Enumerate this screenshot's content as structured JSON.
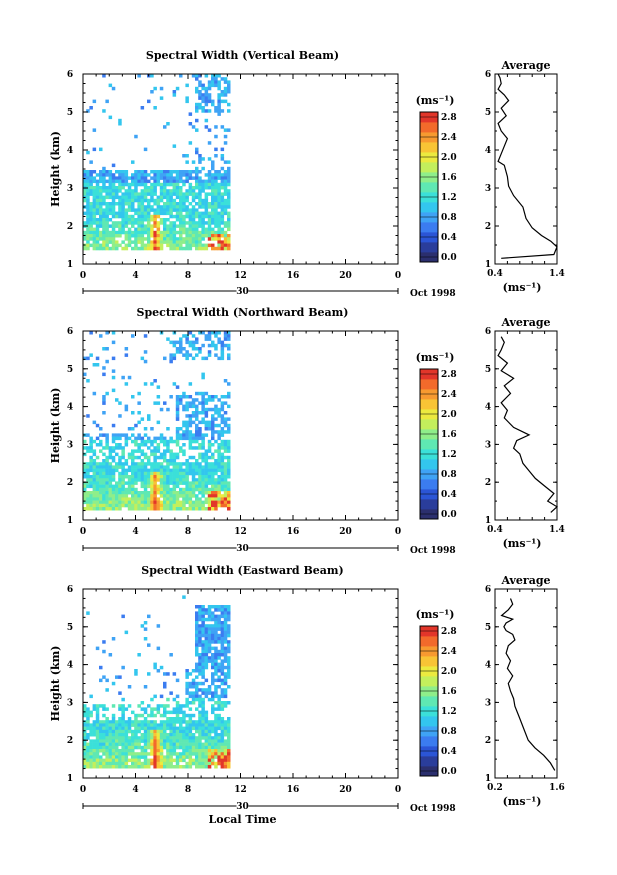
{
  "chart_data": [
    {
      "type": "heatmap",
      "title": "Spectral Width (Vertical Beam)",
      "ylabel": "Height (km)",
      "xlim": [
        0,
        24
      ],
      "ylim": [
        1,
        6
      ],
      "xticks": [
        "0",
        "4",
        "8",
        "12",
        "16",
        "20",
        "0"
      ],
      "yticks": [
        "1",
        "2",
        "3",
        "4",
        "5",
        "6"
      ],
      "date_day": "30",
      "date_month": "Oct 1998",
      "colorbar_unit": "(ms⁻¹)",
      "colorbar_ticks": [
        "2.8",
        "2.4",
        "2.0",
        "1.6",
        "1.2",
        "0.8",
        "0.4",
        "0.0"
      ],
      "data_extent": {
        "x_end": 11.0
      },
      "profile": {
        "title": "Average",
        "xlabel": "(ms⁻¹)",
        "xticks": [
          "0.4",
          "1.4"
        ],
        "xlim": [
          0.4,
          1.4
        ],
        "yticks": [
          "1",
          "2",
          "3",
          "4",
          "5",
          "6"
        ],
        "x": [
          0.5,
          1.35,
          1.4,
          1.3,
          1.15,
          1.0,
          0.9,
          0.85,
          0.7,
          0.62,
          0.6,
          0.55,
          0.45,
          0.5,
          0.55,
          0.6,
          0.5,
          0.45,
          0.58,
          0.5,
          0.62,
          0.55,
          0.45,
          0.5,
          0.48,
          0.45
        ],
        "y": [
          1.15,
          1.25,
          1.45,
          1.6,
          1.75,
          1.95,
          2.2,
          2.5,
          2.8,
          3.05,
          3.3,
          3.6,
          3.7,
          3.9,
          4.1,
          4.3,
          4.5,
          4.7,
          4.9,
          5.1,
          5.3,
          5.45,
          5.6,
          5.75,
          5.9,
          6.0
        ]
      }
    },
    {
      "type": "heatmap",
      "title": "Spectral Width (Northward Beam)",
      "ylabel": "Height (km)",
      "xlim": [
        0,
        24
      ],
      "ylim": [
        1,
        6
      ],
      "xticks": [
        "0",
        "4",
        "8",
        "12",
        "16",
        "20",
        "0"
      ],
      "yticks": [
        "1",
        "2",
        "3",
        "4",
        "5",
        "6"
      ],
      "date_day": "30",
      "date_month": "Oct 1998",
      "colorbar_unit": "(ms⁻¹)",
      "colorbar_ticks": [
        "2.8",
        "2.4",
        "2.0",
        "1.6",
        "1.2",
        "0.8",
        "0.4",
        "0.0"
      ],
      "data_extent": {
        "x_end": 11.0
      },
      "profile": {
        "title": "Average",
        "xlabel": "(ms⁻¹)",
        "xticks": [
          "0.4",
          "1.4"
        ],
        "xlim": [
          0.4,
          1.4
        ],
        "yticks": [
          "1",
          "2",
          "3",
          "4",
          "5",
          "6"
        ],
        "x": [
          1.3,
          1.4,
          1.25,
          1.35,
          1.2,
          1.05,
          0.95,
          0.85,
          0.8,
          0.7,
          0.75,
          0.95,
          0.7,
          0.55,
          0.6,
          0.5,
          0.65,
          0.55,
          0.7,
          0.5,
          0.6,
          0.45,
          0.5,
          0.55,
          0.5
        ],
        "y": [
          1.2,
          1.35,
          1.5,
          1.7,
          1.9,
          2.1,
          2.3,
          2.5,
          2.75,
          2.9,
          3.1,
          3.25,
          3.45,
          3.7,
          3.9,
          4.1,
          4.35,
          4.55,
          4.75,
          4.95,
          5.15,
          5.35,
          5.5,
          5.7,
          5.85
        ]
      }
    },
    {
      "type": "heatmap",
      "title": "Spectral Width (Eastward Beam)",
      "ylabel": "Height (km)",
      "xlabel": "Local Time",
      "xlim": [
        0,
        24
      ],
      "ylim": [
        1,
        6
      ],
      "xticks": [
        "0",
        "4",
        "8",
        "12",
        "16",
        "20",
        "0"
      ],
      "yticks": [
        "1",
        "2",
        "3",
        "4",
        "5",
        "6"
      ],
      "date_day": "30",
      "date_month": "Oct 1998",
      "colorbar_unit": "(ms⁻¹)",
      "colorbar_ticks": [
        "2.8",
        "2.4",
        "2.0",
        "1.6",
        "1.2",
        "0.8",
        "0.4",
        "0.0"
      ],
      "data_extent": {
        "x_end": 11.0
      },
      "profile": {
        "title": "Average",
        "xlabel": "(ms⁻¹)",
        "xticks": [
          "0.2",
          "1.6"
        ],
        "xlim": [
          0.2,
          1.6
        ],
        "yticks": [
          "1",
          "2",
          "3",
          "4",
          "5",
          "6"
        ],
        "x": [
          1.55,
          1.45,
          1.3,
          1.1,
          0.95,
          0.85,
          0.75,
          0.65,
          0.62,
          0.55,
          0.5,
          0.6,
          0.48,
          0.55,
          0.45,
          0.5,
          0.65,
          0.6,
          0.45,
          0.4,
          0.45,
          0.6,
          0.35,
          0.5,
          0.6,
          0.55
        ],
        "y": [
          1.2,
          1.4,
          1.6,
          1.8,
          2.0,
          2.3,
          2.6,
          2.9,
          3.1,
          3.3,
          3.5,
          3.7,
          3.9,
          4.1,
          4.3,
          4.5,
          4.65,
          4.8,
          4.9,
          5.0,
          5.1,
          5.2,
          5.3,
          5.45,
          5.6,
          5.75
        ]
      }
    }
  ]
}
